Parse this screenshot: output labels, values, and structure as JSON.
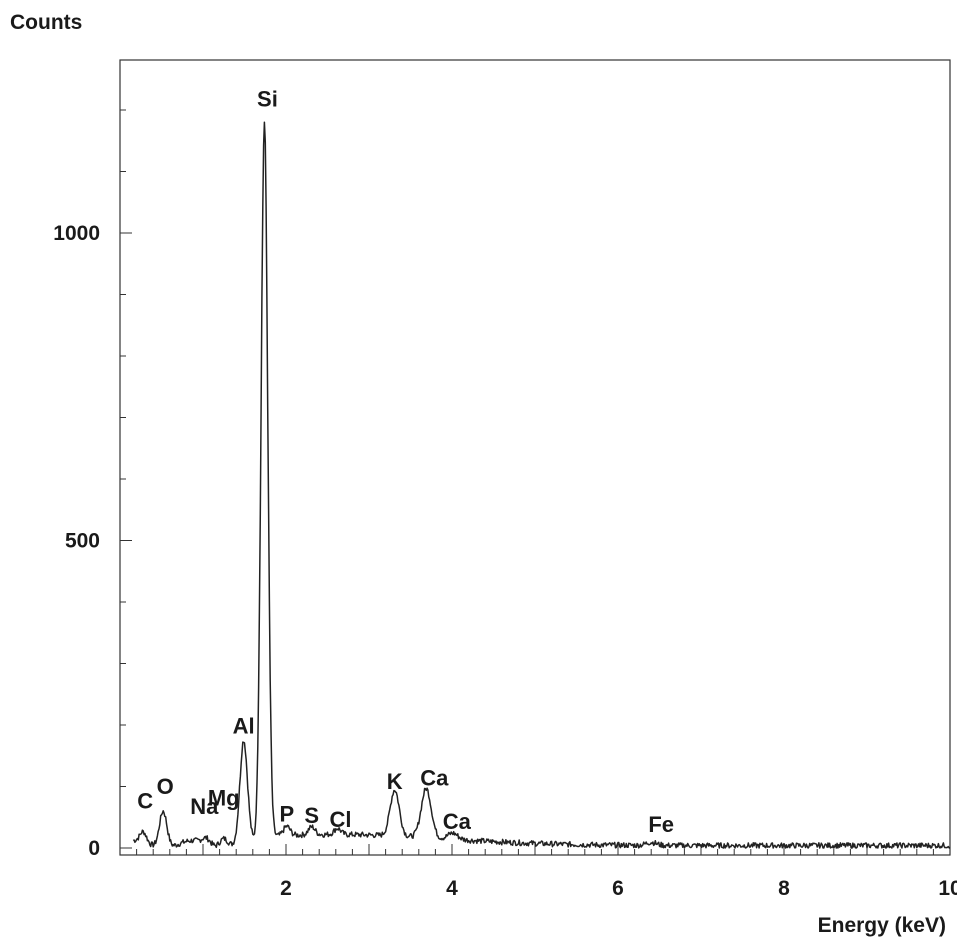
{
  "chart_data": {
    "type": "line",
    "title": "",
    "ylabel": "Counts",
    "xlabel": "Energy (keV)",
    "xlim": [
      0,
      10
    ],
    "ylim": [
      0,
      1230
    ],
    "grid": false,
    "legend": "none",
    "line_color": "#222222",
    "x_ticks": [
      2,
      4,
      6,
      8,
      10
    ],
    "x_tick_labels": [
      "2",
      "4",
      "6",
      "8",
      "10"
    ],
    "y_ticks": [
      0,
      500,
      1000
    ],
    "y_tick_labels": [
      "0",
      "500",
      "1000"
    ],
    "peaks": [
      {
        "element": "C",
        "energy": 0.28,
        "counts": 22
      },
      {
        "element": "O",
        "energy": 0.52,
        "counts": 65
      },
      {
        "element": "Na",
        "energy": 1.04,
        "counts": 15
      },
      {
        "element": "Mg",
        "energy": 1.25,
        "counts": 20
      },
      {
        "element": "Al",
        "energy": 1.49,
        "counts": 170
      },
      {
        "element": "Si",
        "energy": 1.74,
        "counts": 1170
      },
      {
        "element": "P",
        "energy": 2.01,
        "counts": 20
      },
      {
        "element": "S",
        "energy": 2.31,
        "counts": 18
      },
      {
        "element": "Cl",
        "energy": 2.62,
        "counts": 15
      },
      {
        "element": "K",
        "energy": 3.31,
        "counts": 80
      },
      {
        "element": "Ca",
        "energy": 3.69,
        "counts": 85
      },
      {
        "element": "Ca",
        "energy": 4.01,
        "counts": 15
      },
      {
        "element": "Fe",
        "energy": 6.4,
        "counts": 10
      }
    ]
  }
}
